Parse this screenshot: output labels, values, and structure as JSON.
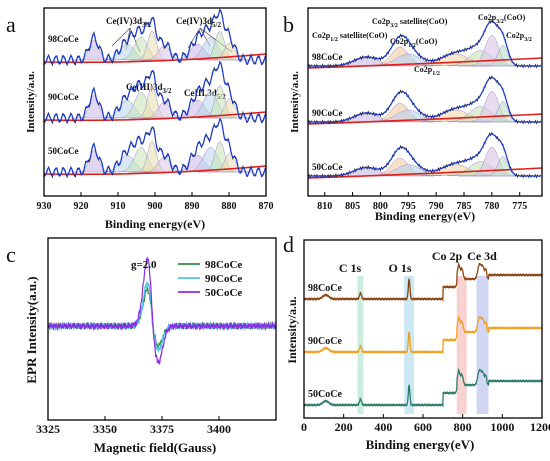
{
  "figure": {
    "panels": [
      {
        "letter": "a",
        "xlabel": "Binding energy(eV)",
        "ylabel": "Intensity/a.u."
      },
      {
        "letter": "b",
        "xlabel": "Binding energy(eV)",
        "ylabel": "Intensity/a.u."
      },
      {
        "letter": "c",
        "xlabel": "Magnetic field(Gauss)",
        "ylabel": "EPR Intensity(a.u.)"
      },
      {
        "letter": "d",
        "xlabel": "Binding energy(eV)",
        "ylabel": "Intensity/a.u."
      }
    ]
  },
  "chart_data": [
    {
      "type": "line",
      "panel": "a",
      "xlabel": "Binding energy(eV)",
      "ylabel": "Intensity/a.u.",
      "xlim": [
        930,
        870
      ],
      "x_reversed": true,
      "xticks": [
        930,
        920,
        910,
        900,
        890,
        880,
        870
      ],
      "series": [
        {
          "name": "98CoCe",
          "x": [
            930,
            920,
            916.5,
            913,
            907,
            903,
            900.8,
            897,
            892,
            888,
            885,
            882.5,
            879,
            870
          ],
          "y": [
            0.05,
            0.1,
            0.35,
            0.15,
            0.25,
            0.45,
            0.5,
            0.3,
            0.2,
            0.3,
            0.5,
            0.55,
            0.3,
            0.1
          ]
        },
        {
          "name": "90CoCe",
          "x": [
            930,
            920,
            916.5,
            913,
            907,
            903,
            900.8,
            897,
            892,
            888,
            885,
            882.5,
            879,
            870
          ],
          "y": [
            0.05,
            0.1,
            0.4,
            0.15,
            0.3,
            0.55,
            0.65,
            0.35,
            0.2,
            0.35,
            0.6,
            0.7,
            0.35,
            0.1
          ]
        },
        {
          "name": "50CoCe",
          "x": [
            930,
            920,
            916.5,
            913,
            907,
            903,
            900.8,
            897,
            892,
            888,
            885,
            882.5,
            879,
            870
          ],
          "y": [
            0.05,
            0.1,
            0.35,
            0.15,
            0.28,
            0.5,
            0.6,
            0.32,
            0.2,
            0.32,
            0.55,
            0.62,
            0.3,
            0.1
          ]
        }
      ],
      "annotations": [
        {
          "sub": "Ce(IV)3d",
          "subscript": "3/2"
        },
        {
          "sub": "Ce(IV)3d",
          "subscript": "5/2"
        },
        {
          "sub": "Ce(III)3d",
          "subscript": "3/2"
        },
        {
          "sub": "CeIII,3d",
          "subscript": "5/2"
        }
      ]
    },
    {
      "type": "line",
      "panel": "b",
      "xlabel": "Binding energy(eV)",
      "ylabel": "Intensity/a.u.",
      "xlim": [
        813,
        771
      ],
      "x_reversed": true,
      "xticks": [
        810,
        805,
        800,
        795,
        790,
        785,
        780,
        775
      ],
      "series": [
        {
          "name": "98CoCe",
          "x": [
            813,
            800,
            796,
            791,
            786,
            780,
            777,
            771
          ],
          "y": [
            0.05,
            0.12,
            0.4,
            0.15,
            0.3,
            0.9,
            0.3,
            0.05
          ]
        },
        {
          "name": "90CoCe",
          "x": [
            813,
            800,
            796,
            791,
            786,
            780,
            777,
            771
          ],
          "y": [
            0.05,
            0.12,
            0.4,
            0.15,
            0.3,
            1.0,
            0.3,
            0.05
          ]
        },
        {
          "name": "50CoCe",
          "x": [
            813,
            800,
            796,
            791,
            786,
            780,
            777,
            771
          ],
          "y": [
            0.05,
            0.1,
            0.3,
            0.12,
            0.25,
            0.8,
            0.25,
            0.05
          ]
        }
      ],
      "annotations": [
        {
          "sub": "Co2p",
          "subscript": "1/2",
          "suffix": " satellite(CoO)"
        },
        {
          "sub": "Co2p",
          "subscript": "3/2",
          "suffix": " satellite(CoO)"
        },
        {
          "sub": "Co2p",
          "subscript": "3/2",
          "suffix": "(CoO)"
        },
        {
          "sub": "Co2p",
          "subscript": "1/2",
          "suffix": "(CoO)"
        },
        {
          "sub": "Co2p",
          "subscript": "1/2",
          "suffix": ""
        },
        {
          "sub": "Co2p",
          "subscript": "3/2",
          "suffix": ""
        }
      ]
    },
    {
      "type": "line",
      "panel": "c",
      "xlabel": "Magnetic field(Gauss)",
      "ylabel": "EPR Intensity(a.u.)",
      "xlim": [
        3325,
        3425
      ],
      "xticks": [
        3325,
        3350,
        3375,
        3400
      ],
      "annotation": "g=2.0",
      "legend_position": "top-right",
      "series": [
        {
          "name": "98CoCe",
          "color": "#2e8b3e",
          "center": 3371,
          "amplitude": 0.55
        },
        {
          "name": "90CoCe",
          "color": "#4fc7e6",
          "center": 3371,
          "amplitude": 0.65
        },
        {
          "name": "50CoCe",
          "color": "#8a2be2",
          "center": 3371,
          "amplitude": 1.0
        }
      ]
    },
    {
      "type": "line",
      "panel": "d",
      "xlabel": "Binding energy(eV)",
      "ylabel": "Intensity/a.u.",
      "xlim": [
        0,
        1200
      ],
      "xticks": [
        0,
        200,
        400,
        600,
        800,
        1000,
        1200
      ],
      "peak_labels": [
        {
          "label": "C 1s",
          "x": 285
        },
        {
          "label": "O 1s",
          "x": 530
        },
        {
          "label": "Co 2p",
          "x": 780
        },
        {
          "label": "Ce 3d",
          "x": 900
        }
      ],
      "highlight_bands": [
        {
          "x0": 270,
          "x1": 300,
          "color": "#bfe8d4"
        },
        {
          "x0": 505,
          "x1": 555,
          "color": "#bfe3f0"
        },
        {
          "x0": 770,
          "x1": 820,
          "color": "#f6c6c6"
        },
        {
          "x0": 870,
          "x1": 930,
          "color": "#c6ccf2"
        }
      ],
      "series": [
        {
          "name": "98CoCe",
          "color": "#8b4513"
        },
        {
          "name": "90CoCe",
          "color": "#f0a020"
        },
        {
          "name": "50CoCe",
          "color": "#2e7d6b"
        }
      ]
    }
  ]
}
